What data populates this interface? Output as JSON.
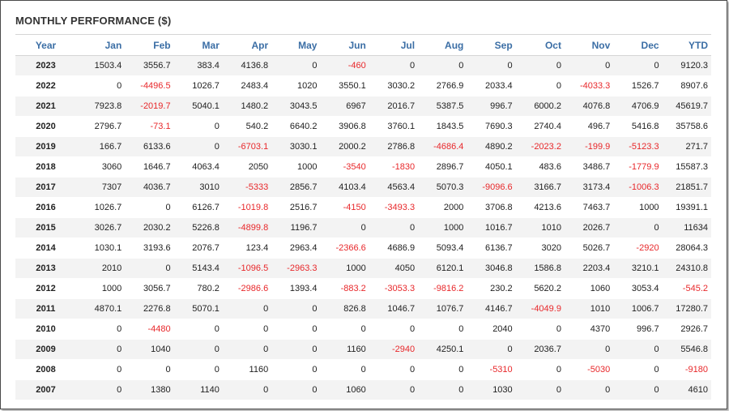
{
  "title": "MONTHLY PERFORMANCE ($)",
  "colors": {
    "header_text": "#3b6ea5",
    "negative": "#e8282b",
    "row_alt": "#f3f3f3"
  },
  "columns": [
    "Year",
    "Jan",
    "Feb",
    "Mar",
    "Apr",
    "May",
    "Jun",
    "Jul",
    "Aug",
    "Sep",
    "Oct",
    "Nov",
    "Dec",
    "YTD"
  ],
  "rows": [
    [
      "2023",
      "1503.4",
      "3556.7",
      "383.4",
      "4136.8",
      "0",
      "-460",
      "0",
      "0",
      "0",
      "0",
      "0",
      "0",
      "9120.3"
    ],
    [
      "2022",
      "0",
      "-4496.5",
      "1026.7",
      "2483.4",
      "1020",
      "3550.1",
      "3030.2",
      "2766.9",
      "2033.4",
      "0",
      "-4033.3",
      "1526.7",
      "8907.6"
    ],
    [
      "2021",
      "7923.8",
      "-2019.7",
      "5040.1",
      "1480.2",
      "3043.5",
      "6967",
      "2016.7",
      "5387.5",
      "996.7",
      "6000.2",
      "4076.8",
      "4706.9",
      "45619.7"
    ],
    [
      "2020",
      "2796.7",
      "-73.1",
      "0",
      "540.2",
      "6640.2",
      "3906.8",
      "3760.1",
      "1843.5",
      "7690.3",
      "2740.4",
      "496.7",
      "5416.8",
      "35758.6"
    ],
    [
      "2019",
      "166.7",
      "6133.6",
      "0",
      "-6703.1",
      "3030.1",
      "2000.2",
      "2786.8",
      "-4686.4",
      "4890.2",
      "-2023.2",
      "-199.9",
      "-5123.3",
      "271.7"
    ],
    [
      "2018",
      "3060",
      "1646.7",
      "4063.4",
      "2050",
      "1000",
      "-3540",
      "-1830",
      "2896.7",
      "4050.1",
      "483.6",
      "3486.7",
      "-1779.9",
      "15587.3"
    ],
    [
      "2017",
      "7307",
      "4036.7",
      "3010",
      "-5333",
      "2856.7",
      "4103.4",
      "4563.4",
      "5070.3",
      "-9096.6",
      "3166.7",
      "3173.4",
      "-1006.3",
      "21851.7"
    ],
    [
      "2016",
      "1026.7",
      "0",
      "6126.7",
      "-1019.8",
      "2516.7",
      "-4150",
      "-3493.3",
      "2000",
      "3706.8",
      "4213.6",
      "7463.7",
      "1000",
      "19391.1"
    ],
    [
      "2015",
      "3026.7",
      "2030.2",
      "5226.8",
      "-4899.8",
      "1196.7",
      "0",
      "0",
      "1000",
      "1016.7",
      "1010",
      "2026.7",
      "0",
      "11634"
    ],
    [
      "2014",
      "1030.1",
      "3193.6",
      "2076.7",
      "123.4",
      "2963.4",
      "-2366.6",
      "4686.9",
      "5093.4",
      "6136.7",
      "3020",
      "5026.7",
      "-2920",
      "28064.3"
    ],
    [
      "2013",
      "2010",
      "0",
      "5143.4",
      "-1096.5",
      "-2963.3",
      "1000",
      "4050",
      "6120.1",
      "3046.8",
      "1586.8",
      "2203.4",
      "3210.1",
      "24310.8"
    ],
    [
      "2012",
      "1000",
      "3056.7",
      "780.2",
      "-2986.6",
      "1393.4",
      "-883.2",
      "-3053.3",
      "-9816.2",
      "230.2",
      "5620.2",
      "1060",
      "3053.4",
      "-545.2"
    ],
    [
      "2011",
      "4870.1",
      "2276.8",
      "5070.1",
      "0",
      "0",
      "826.8",
      "1046.7",
      "1076.7",
      "4146.7",
      "-4049.9",
      "1010",
      "1006.7",
      "17280.7"
    ],
    [
      "2010",
      "0",
      "-4480",
      "0",
      "0",
      "0",
      "0",
      "0",
      "0",
      "2040",
      "0",
      "4370",
      "996.7",
      "2926.7"
    ],
    [
      "2009",
      "0",
      "1040",
      "0",
      "0",
      "0",
      "1160",
      "-2940",
      "4250.1",
      "0",
      "2036.7",
      "0",
      "0",
      "5546.8"
    ],
    [
      "2008",
      "0",
      "0",
      "0",
      "1160",
      "0",
      "0",
      "0",
      "0",
      "-5310",
      "0",
      "-5030",
      "0",
      "-9180"
    ],
    [
      "2007",
      "0",
      "1380",
      "1140",
      "0",
      "0",
      "1060",
      "0",
      "0",
      "1030",
      "0",
      "0",
      "0",
      "4610"
    ]
  ]
}
